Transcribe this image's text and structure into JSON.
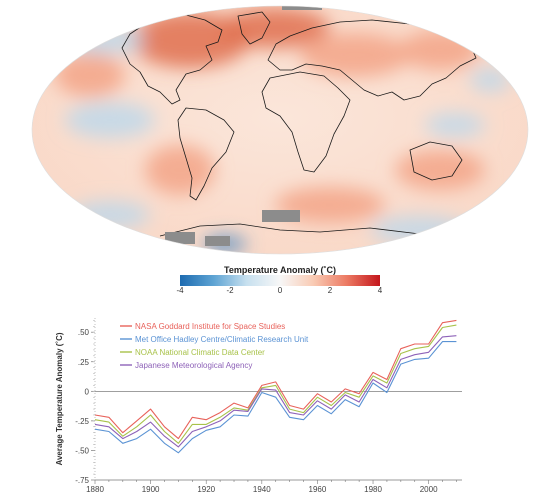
{
  "map": {
    "colorbar": {
      "title": "Temperature Anomaly (˚C)",
      "ticks": [
        "-4",
        "-2",
        "0",
        "2",
        "4"
      ],
      "stops": [
        "#1d6bb0",
        "#5da3d3",
        "#c7e0ef",
        "#f7f7f7",
        "#f9cbb4",
        "#ec7a63",
        "#c4161c"
      ]
    },
    "colors": {
      "warm_light": "#fbe3d6",
      "warm": "#f3a487",
      "warm_strong": "#e0704f",
      "cool": "#bcd8ec",
      "cool_strong": "#3f84c2",
      "no_data": "#8c8c8c",
      "outline": "#1a1a1a"
    }
  },
  "chart_data": {
    "type": "line",
    "title": "",
    "xlabel": "",
    "ylabel": "Average Temperature Anomaly (˚C)",
    "xlim": [
      1880,
      2012
    ],
    "ylim": [
      -0.75,
      0.62
    ],
    "xticks": [
      1880,
      1900,
      1920,
      1940,
      1960,
      1980,
      2000
    ],
    "yticks": [
      {
        "value": 0.5,
        "label": ".50"
      },
      {
        "value": 0.25,
        "label": ".25"
      },
      {
        "value": 0,
        "label": "0"
      },
      {
        "value": -0.25,
        "label": "-.25"
      },
      {
        "value": -0.5,
        "label": "-.50"
      },
      {
        "value": -0.75,
        "label": "-.75"
      }
    ],
    "legend_position": "top-left",
    "x": [
      1880,
      1885,
      1890,
      1895,
      1900,
      1905,
      1910,
      1915,
      1920,
      1925,
      1930,
      1935,
      1940,
      1945,
      1950,
      1955,
      1960,
      1965,
      1970,
      1975,
      1980,
      1985,
      1990,
      1995,
      2000,
      2005,
      2010
    ],
    "series": [
      {
        "name": "NASA Goddard Institute for Space Studies",
        "color": "#e8625b",
        "values": [
          -0.2,
          -0.22,
          -0.35,
          -0.25,
          -0.15,
          -0.3,
          -0.4,
          -0.22,
          -0.24,
          -0.18,
          -0.1,
          -0.14,
          0.05,
          0.08,
          -0.12,
          -0.15,
          -0.02,
          -0.09,
          0.02,
          -0.02,
          0.16,
          0.1,
          0.36,
          0.4,
          0.4,
          0.58,
          0.6
        ]
      },
      {
        "name": "Met Office Hadley Centre/Climatic Research Unit",
        "color": "#5b93d4",
        "values": [
          -0.32,
          -0.34,
          -0.44,
          -0.4,
          -0.32,
          -0.44,
          -0.52,
          -0.4,
          -0.33,
          -0.3,
          -0.2,
          -0.21,
          -0.01,
          -0.05,
          -0.22,
          -0.24,
          -0.12,
          -0.19,
          -0.07,
          -0.13,
          0.07,
          -0.01,
          0.23,
          0.27,
          0.28,
          0.42,
          0.42
        ]
      },
      {
        "name": "NOAA National Climatic Data Center",
        "color": "#a8c24a",
        "values": [
          -0.24,
          -0.26,
          -0.38,
          -0.3,
          -0.2,
          -0.34,
          -0.44,
          -0.28,
          -0.28,
          -0.22,
          -0.14,
          -0.16,
          0.03,
          0.05,
          -0.15,
          -0.18,
          -0.05,
          -0.12,
          -0.01,
          -0.05,
          0.13,
          0.07,
          0.32,
          0.36,
          0.38,
          0.54,
          0.56
        ]
      },
      {
        "name": "Japanese Meteorological Agency",
        "color": "#8e62b8",
        "values": [
          -0.28,
          -0.3,
          -0.4,
          -0.34,
          -0.26,
          -0.38,
          -0.47,
          -0.34,
          -0.3,
          -0.25,
          -0.16,
          -0.17,
          0.02,
          0.01,
          -0.18,
          -0.2,
          -0.08,
          -0.15,
          -0.03,
          -0.09,
          0.1,
          0.03,
          0.27,
          0.31,
          0.33,
          0.46,
          0.47
        ]
      }
    ]
  }
}
